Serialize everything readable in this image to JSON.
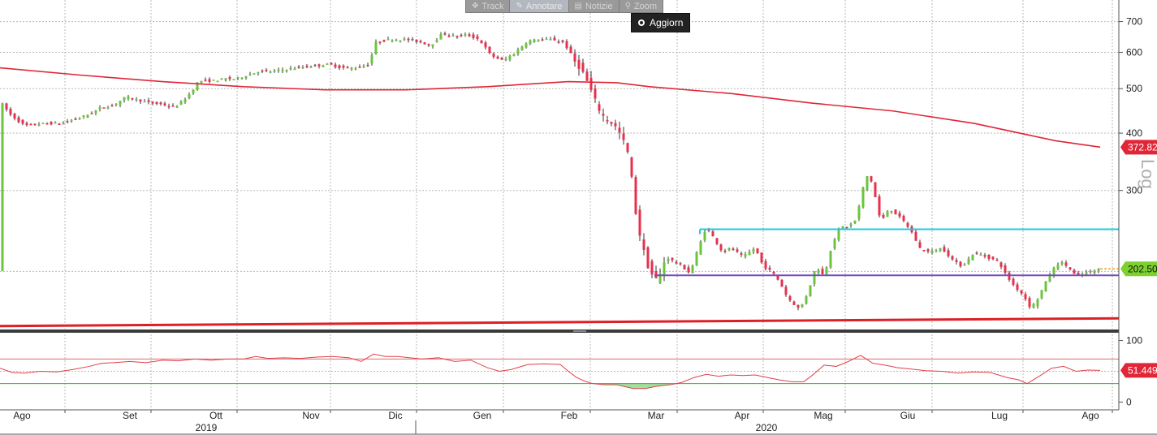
{
  "toolbar": {
    "items": [
      {
        "label": "Track",
        "icon": "crosshair-icon",
        "glyph": "✥",
        "active": false
      },
      {
        "label": "Annotare",
        "icon": "pencil-icon",
        "glyph": "✎",
        "active": true
      },
      {
        "label": "Notizie",
        "icon": "news-icon",
        "glyph": "▤",
        "active": false
      },
      {
        "label": "Zoom",
        "icon": "magnifier-icon",
        "glyph": "⚲",
        "active": false
      }
    ]
  },
  "refresh_button": {
    "label": "Aggiorn"
  },
  "colors": {
    "bull": "#6bc53c",
    "bear": "#e8304d",
    "ma": "#e02637",
    "resistance": "#25c8dc",
    "support": "#7a4bb8",
    "trend": "#dd1f26",
    "rsi_line": "#e0404a",
    "rsi_upper": "#e06a6a",
    "rsi_lower": "#35b233",
    "rsi_fill": "#8fd68a",
    "grid": "#b8b8b8",
    "price_tag": "#7dd12f",
    "ma_tag": "#e02637",
    "rsi_tag": "#e02637"
  },
  "chart_data": {
    "type": "candlestick",
    "scale": "log",
    "scale_label": "Log",
    "price_axis": {
      "ticks": [
        300,
        400,
        500,
        600,
        700
      ],
      "range": [
        150,
        780
      ]
    },
    "rsi_axis": {
      "ticks": [
        0,
        100
      ],
      "range": [
        -10,
        110
      ],
      "upper": 70,
      "lower": 30
    },
    "last_price": 202.5,
    "last_price_label": "202.50",
    "ma_last_label": "372.82",
    "rsi_last": 51.4494,
    "rsi_last_label": "51.4494",
    "month_labels": [
      "Ago",
      "Set",
      "Ott",
      "Nov",
      "Dic",
      "Gen",
      "Feb",
      "Mar",
      "Apr",
      "Mag",
      "Giu",
      "Lug",
      "Ago"
    ],
    "year_labels": [
      "2019",
      "2020"
    ],
    "anchors": [
      [
        0,
        470
      ],
      [
        12,
        440
      ],
      [
        30,
        415
      ],
      [
        55,
        420
      ],
      [
        75,
        420
      ],
      [
        95,
        430
      ],
      [
        110,
        440
      ],
      [
        125,
        455
      ],
      [
        140,
        460
      ],
      [
        155,
        480
      ],
      [
        175,
        470
      ],
      [
        185,
        465
      ],
      [
        200,
        462
      ],
      [
        215,
        455
      ],
      [
        225,
        470
      ],
      [
        235,
        490
      ],
      [
        245,
        520
      ],
      [
        260,
        520
      ],
      [
        278,
        525
      ],
      [
        290,
        525
      ],
      [
        305,
        535
      ],
      [
        318,
        545
      ],
      [
        335,
        545
      ],
      [
        350,
        550
      ],
      [
        365,
        555
      ],
      [
        385,
        560
      ],
      [
        405,
        565
      ],
      [
        420,
        555
      ],
      [
        440,
        555
      ],
      [
        455,
        565
      ],
      [
        462,
        630
      ],
      [
        480,
        640
      ],
      [
        500,
        640
      ],
      [
        520,
        630
      ],
      [
        530,
        620
      ],
      [
        545,
        660
      ],
      [
        560,
        650
      ],
      [
        575,
        655
      ],
      [
        590,
        640
      ],
      [
        605,
        590
      ],
      [
        620,
        575
      ],
      [
        635,
        600
      ],
      [
        650,
        635
      ],
      [
        665,
        640
      ],
      [
        680,
        640
      ],
      [
        695,
        630
      ],
      [
        705,
        580
      ],
      [
        715,
        555
      ],
      [
        725,
        510
      ],
      [
        735,
        460
      ],
      [
        745,
        430
      ],
      [
        755,
        420
      ],
      [
        765,
        395
      ],
      [
        775,
        355
      ],
      [
        782,
        275
      ],
      [
        790,
        230
      ],
      [
        800,
        200
      ],
      [
        810,
        190
      ],
      [
        820,
        215
      ],
      [
        830,
        210
      ],
      [
        840,
        205
      ],
      [
        850,
        198
      ],
      [
        860,
        225
      ],
      [
        870,
        250
      ],
      [
        880,
        235
      ],
      [
        890,
        220
      ],
      [
        900,
        225
      ],
      [
        915,
        215
      ],
      [
        930,
        225
      ],
      [
        940,
        205
      ],
      [
        950,
        200
      ],
      [
        960,
        190
      ],
      [
        970,
        175
      ],
      [
        985,
        165
      ],
      [
        995,
        180
      ],
      [
        1005,
        205
      ],
      [
        1015,
        195
      ],
      [
        1025,
        230
      ],
      [
        1035,
        250
      ],
      [
        1045,
        250
      ],
      [
        1055,
        260
      ],
      [
        1062,
        300
      ],
      [
        1070,
        330
      ],
      [
        1078,
        290
      ],
      [
        1085,
        255
      ],
      [
        1095,
        275
      ],
      [
        1105,
        265
      ],
      [
        1115,
        255
      ],
      [
        1125,
        240
      ],
      [
        1132,
        225
      ],
      [
        1145,
        220
      ],
      [
        1160,
        225
      ],
      [
        1175,
        210
      ],
      [
        1185,
        205
      ],
      [
        1200,
        220
      ],
      [
        1215,
        215
      ],
      [
        1230,
        210
      ],
      [
        1240,
        195
      ],
      [
        1250,
        185
      ],
      [
        1260,
        178
      ],
      [
        1268,
        168
      ],
      [
        1275,
        170
      ],
      [
        1285,
        185
      ],
      [
        1295,
        200
      ],
      [
        1305,
        210
      ],
      [
        1315,
        205
      ],
      [
        1325,
        195
      ],
      [
        1335,
        198
      ],
      [
        1345,
        200
      ],
      [
        1355,
        202.5
      ]
    ],
    "moving_average": [
      [
        0,
        555
      ],
      [
        100,
        535
      ],
      [
        200,
        518
      ],
      [
        300,
        505
      ],
      [
        400,
        497
      ],
      [
        500,
        497
      ],
      [
        600,
        505
      ],
      [
        700,
        518
      ],
      [
        760,
        515
      ],
      [
        800,
        505
      ],
      [
        900,
        488
      ],
      [
        1000,
        465
      ],
      [
        1100,
        447
      ],
      [
        1200,
        420
      ],
      [
        1300,
        385
      ],
      [
        1355,
        372.82
      ]
    ],
    "resistance_line": {
      "from": 862,
      "to": 1378,
      "value": 247
    },
    "support_line": {
      "from": 806,
      "to": 1378,
      "value": 196
    },
    "trend_line": {
      "from": 0,
      "to": 1378,
      "start": 152,
      "end": 158
    },
    "rsi": [
      [
        0,
        55
      ],
      [
        15,
        48
      ],
      [
        30,
        47
      ],
      [
        50,
        50
      ],
      [
        70,
        49
      ],
      [
        90,
        53
      ],
      [
        110,
        58
      ],
      [
        125,
        63
      ],
      [
        140,
        64
      ],
      [
        160,
        66
      ],
      [
        180,
        64
      ],
      [
        200,
        68
      ],
      [
        220,
        67
      ],
      [
        240,
        70
      ],
      [
        260,
        68
      ],
      [
        280,
        70
      ],
      [
        300,
        70
      ],
      [
        315,
        74
      ],
      [
        330,
        71
      ],
      [
        350,
        72
      ],
      [
        370,
        71
      ],
      [
        390,
        73
      ],
      [
        410,
        74
      ],
      [
        430,
        72
      ],
      [
        445,
        66
      ],
      [
        460,
        78
      ],
      [
        475,
        74
      ],
      [
        490,
        74
      ],
      [
        505,
        72
      ],
      [
        520,
        70
      ],
      [
        540,
        72
      ],
      [
        560,
        66
      ],
      [
        580,
        68
      ],
      [
        600,
        56
      ],
      [
        615,
        50
      ],
      [
        630,
        53
      ],
      [
        650,
        61
      ],
      [
        670,
        62
      ],
      [
        690,
        61
      ],
      [
        700,
        50
      ],
      [
        710,
        40
      ],
      [
        720,
        34
      ],
      [
        730,
        30
      ],
      [
        745,
        28
      ],
      [
        760,
        28
      ],
      [
        770,
        25
      ],
      [
        780,
        22
      ],
      [
        795,
        22
      ],
      [
        810,
        26
      ],
      [
        825,
        28
      ],
      [
        840,
        32
      ],
      [
        855,
        40
      ],
      [
        870,
        45
      ],
      [
        885,
        42
      ],
      [
        900,
        44
      ],
      [
        915,
        43
      ],
      [
        930,
        44
      ],
      [
        945,
        40
      ],
      [
        960,
        36
      ],
      [
        975,
        33
      ],
      [
        990,
        33
      ],
      [
        1000,
        43
      ],
      [
        1015,
        60
      ],
      [
        1030,
        58
      ],
      [
        1045,
        66
      ],
      [
        1060,
        76
      ],
      [
        1075,
        63
      ],
      [
        1090,
        60
      ],
      [
        1105,
        56
      ],
      [
        1120,
        54
      ],
      [
        1140,
        51
      ],
      [
        1160,
        50
      ],
      [
        1180,
        47
      ],
      [
        1200,
        49
      ],
      [
        1220,
        48
      ],
      [
        1240,
        40
      ],
      [
        1255,
        36
      ],
      [
        1265,
        30
      ],
      [
        1280,
        42
      ],
      [
        1295,
        55
      ],
      [
        1310,
        58
      ],
      [
        1325,
        50
      ],
      [
        1340,
        52
      ],
      [
        1355,
        51.4494
      ]
    ]
  }
}
